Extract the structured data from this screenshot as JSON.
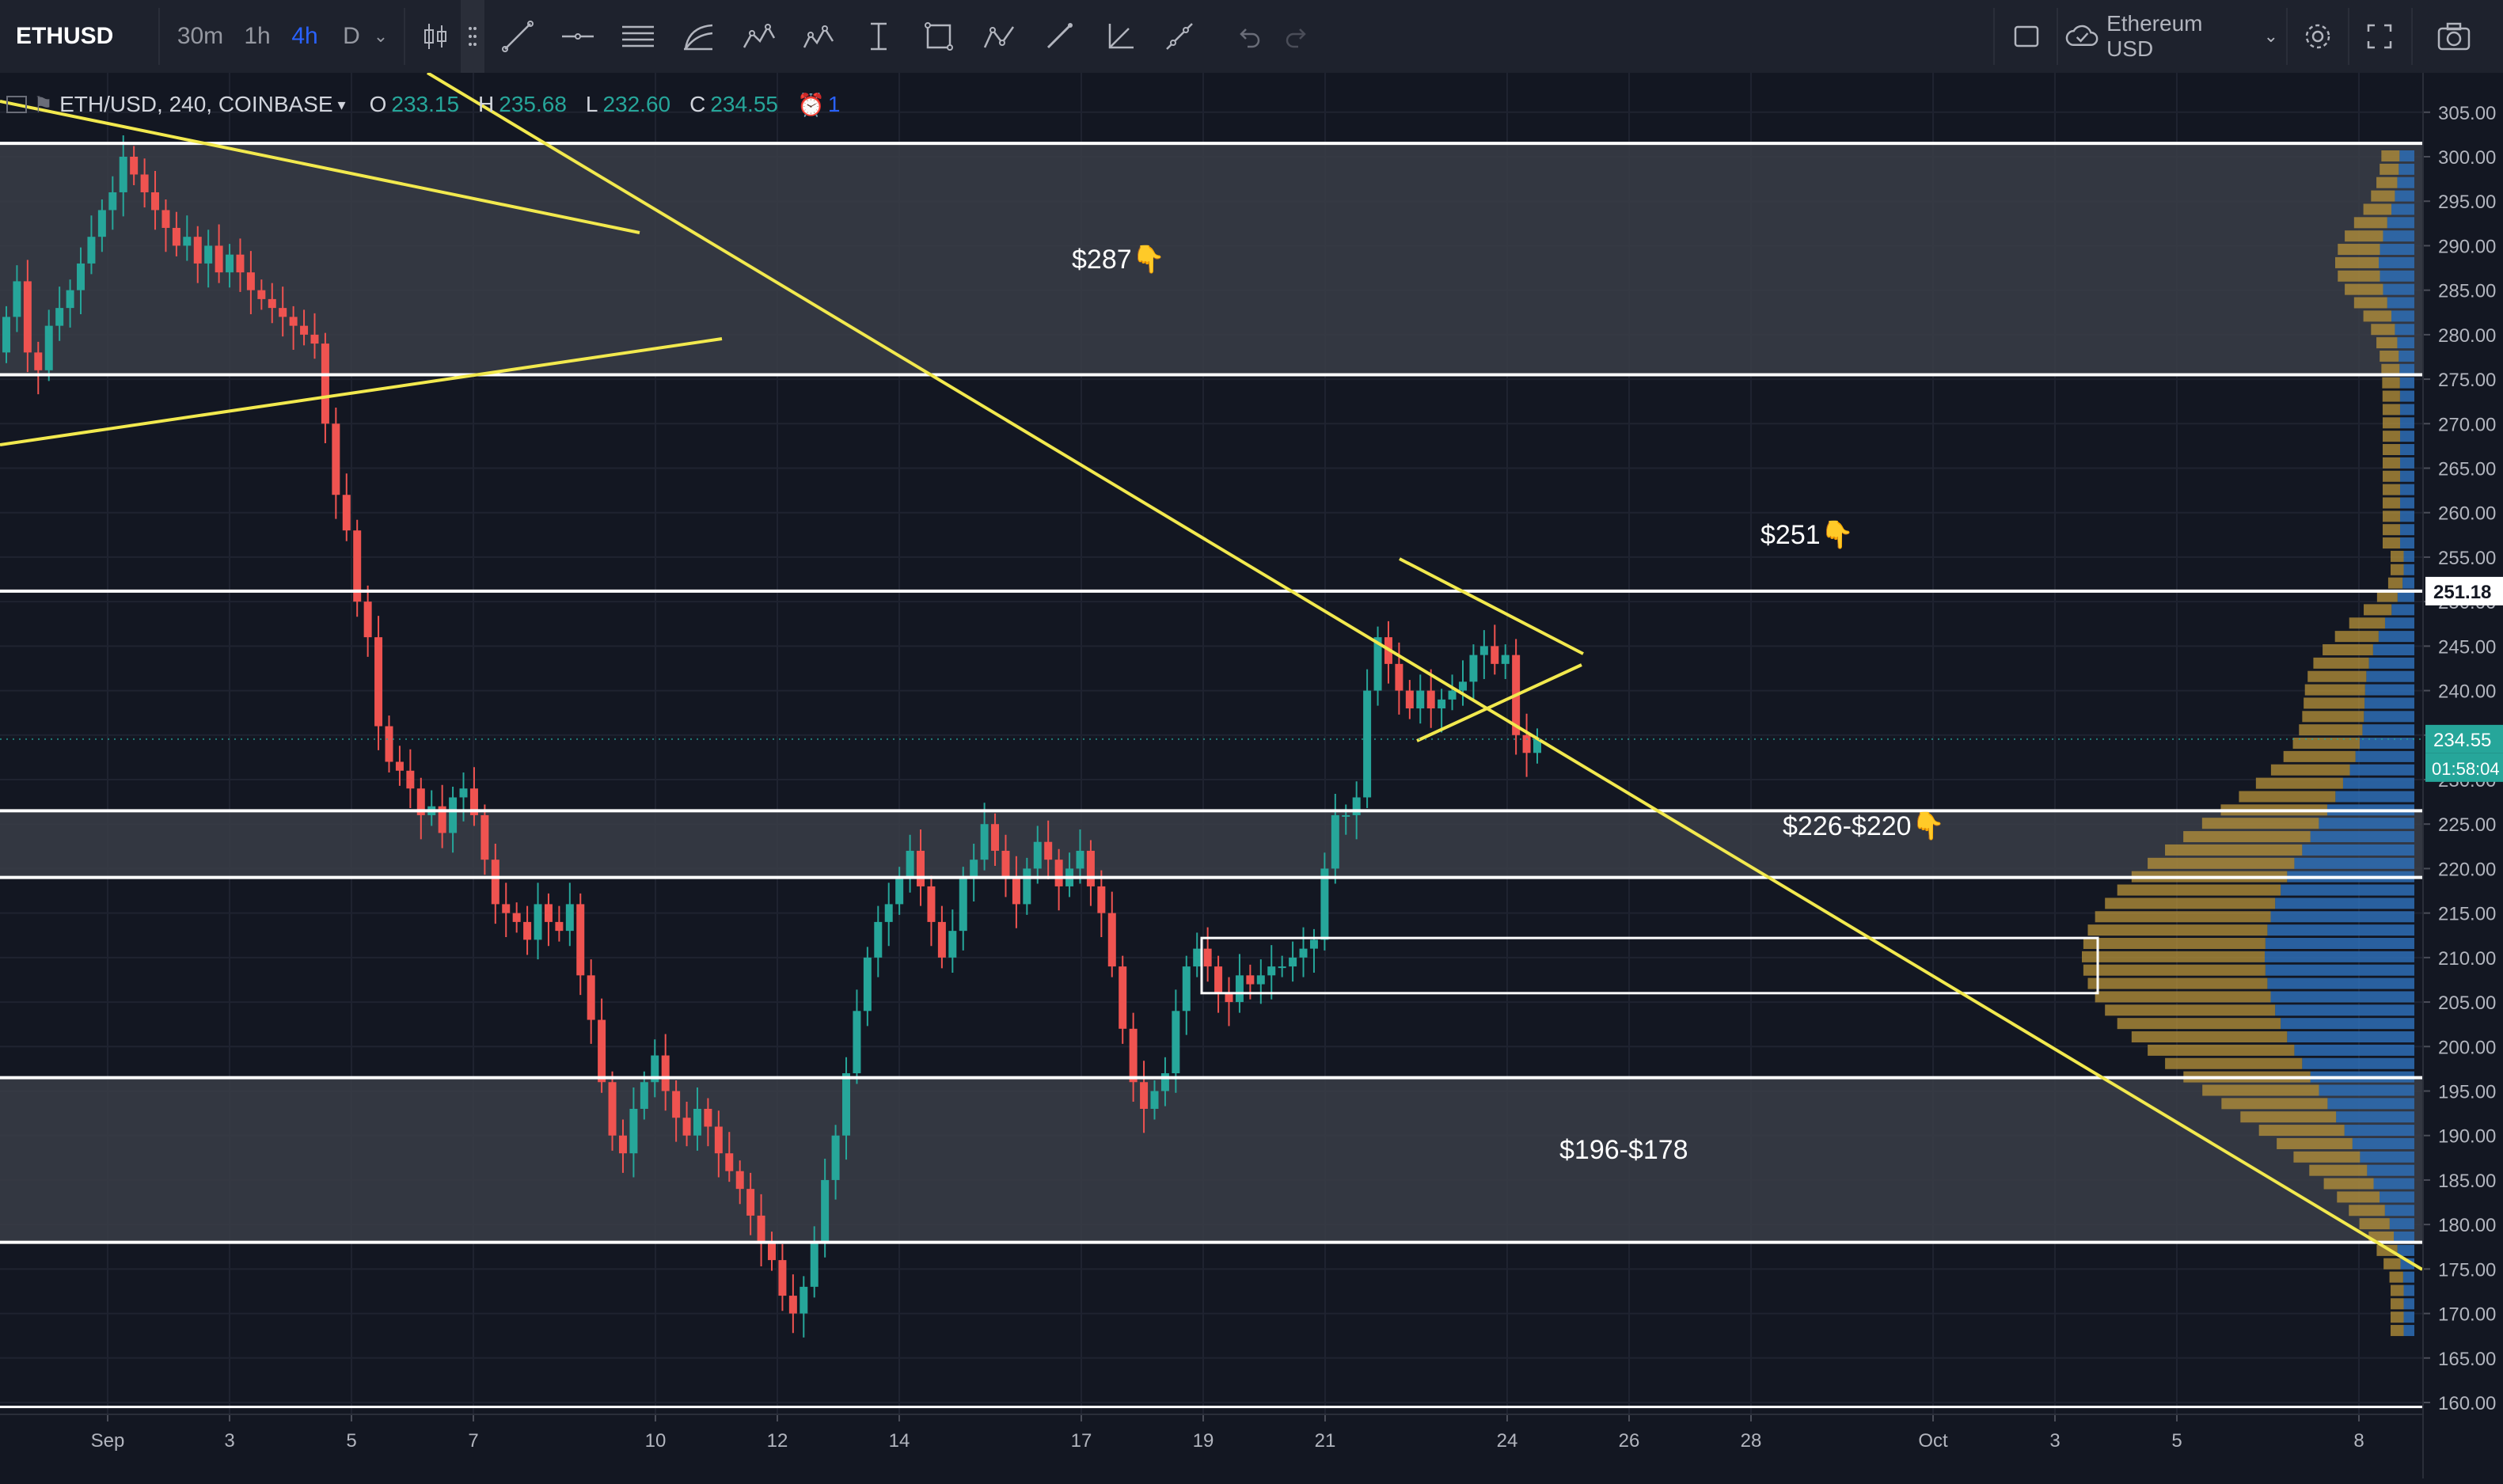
{
  "toolbar": {
    "symbol": "ETHUSD",
    "intervals": [
      "30m",
      "1h",
      "4h",
      "D"
    ],
    "active_interval": "4h",
    "compare_label": "Ethereum USD",
    "tools": [
      "candles-icon",
      "drag-handle-icon",
      "trend-line-icon",
      "horizontal-line-icon",
      "channel-icon",
      "fib-icon",
      "pattern-icon",
      "elliott-icon",
      "measure-icon",
      "rectangle-icon",
      "abcd-icon",
      "brush-icon",
      "angle-icon",
      "path-icon",
      "undo-icon",
      "redo-icon"
    ]
  },
  "legend": {
    "title": "ETH/USD, 240, COINBASE",
    "open_label": "O",
    "open": "233.15",
    "high_label": "H",
    "high": "235.68",
    "low_label": "L",
    "low": "232.60",
    "close_label": "C",
    "close": "234.55",
    "alerts": "1"
  },
  "annotations": {
    "a287": "$287",
    "a251": "$251",
    "a226": "$226-$220",
    "a196": "$196-$178"
  },
  "price_axis": {
    "labels": [
      "305.00",
      "300.00",
      "295.00",
      "290.00",
      "285.00",
      "280.00",
      "275.00",
      "270.00",
      "265.00",
      "260.00",
      "255.00",
      "250.00",
      "245.00",
      "240.00",
      "235.00",
      "230.00",
      "225.00",
      "220.00",
      "215.00",
      "210.00",
      "205.00",
      "200.00",
      "195.00",
      "190.00",
      "185.00",
      "180.00",
      "175.00",
      "170.00",
      "165.00",
      "160.00"
    ],
    "values": [
      305,
      300,
      295,
      290,
      285,
      280,
      275,
      270,
      265,
      260,
      255,
      250,
      245,
      240,
      235,
      230,
      225,
      220,
      215,
      210,
      205,
      200,
      195,
      190,
      185,
      180,
      175,
      170,
      165,
      160
    ],
    "level_tag": "251.18",
    "current_price": "234.55",
    "countdown": "01:58:04"
  },
  "time_axis": {
    "labels": [
      "Sep",
      "3",
      "5",
      "7",
      "10",
      "12",
      "14",
      "17",
      "19",
      "21",
      "24",
      "26",
      "28",
      "Oct",
      "3",
      "5",
      "8"
    ]
  },
  "colors": {
    "background": "#131722",
    "up": "#26a69a",
    "down": "#ef5350",
    "trendline": "#f2e94e",
    "level_line": "#ffffff",
    "zone_fill": "#3a3d47",
    "volume_up": "#2e6db5",
    "volume_down": "#b8933a"
  },
  "chart_data": {
    "type": "candlestick",
    "symbol": "ETH/USD",
    "interval": "240",
    "exchange": "COINBASE",
    "ylim": [
      158,
      308
    ],
    "x_labels": [
      "Sep",
      "3",
      "5",
      "7",
      "10",
      "12",
      "14",
      "17",
      "19",
      "21",
      "24",
      "26",
      "28",
      "Oct",
      "3",
      "5",
      "8"
    ],
    "closes": [
      282,
      286,
      278,
      276,
      281,
      283,
      285,
      288,
      291,
      294,
      296,
      300,
      298,
      296,
      294,
      292,
      290,
      291,
      288,
      290,
      287,
      289,
      287,
      285,
      284,
      283,
      282,
      281,
      280,
      279,
      270,
      262,
      258,
      250,
      246,
      236,
      232,
      231,
      229,
      226,
      227,
      224,
      228,
      229,
      226,
      221,
      216,
      215,
      214,
      212,
      216,
      214,
      213,
      216,
      208,
      203,
      196,
      190,
      188,
      193,
      196,
      199,
      195,
      192,
      190,
      193,
      191,
      188,
      186,
      184,
      181,
      178,
      176,
      172,
      170,
      173,
      178,
      185,
      190,
      197,
      204,
      210,
      214,
      216,
      219,
      222,
      218,
      214,
      210,
      213,
      219,
      221,
      225,
      222,
      219,
      216,
      220,
      223,
      221,
      218,
      220,
      222,
      218,
      215,
      209,
      202,
      196,
      193,
      195,
      197,
      204,
      209,
      211,
      209,
      206,
      205,
      208,
      207,
      208,
      209,
      209,
      210,
      211,
      212,
      220,
      226,
      226,
      228,
      240,
      246,
      243,
      240,
      238,
      240,
      238,
      239,
      240,
      241,
      244,
      245,
      243,
      244,
      235,
      233,
      234.55
    ],
    "levels": [
      301.5,
      275.5,
      251.18,
      226.5,
      219.0,
      196.5,
      178.0,
      159.5
    ],
    "zones": [
      [
        275.5,
        301.5
      ],
      [
        219.0,
        226.5
      ],
      [
        178.0,
        196.5
      ],
      [
        206.0,
        212.0
      ]
    ],
    "volume_profile_poc": 210
  }
}
